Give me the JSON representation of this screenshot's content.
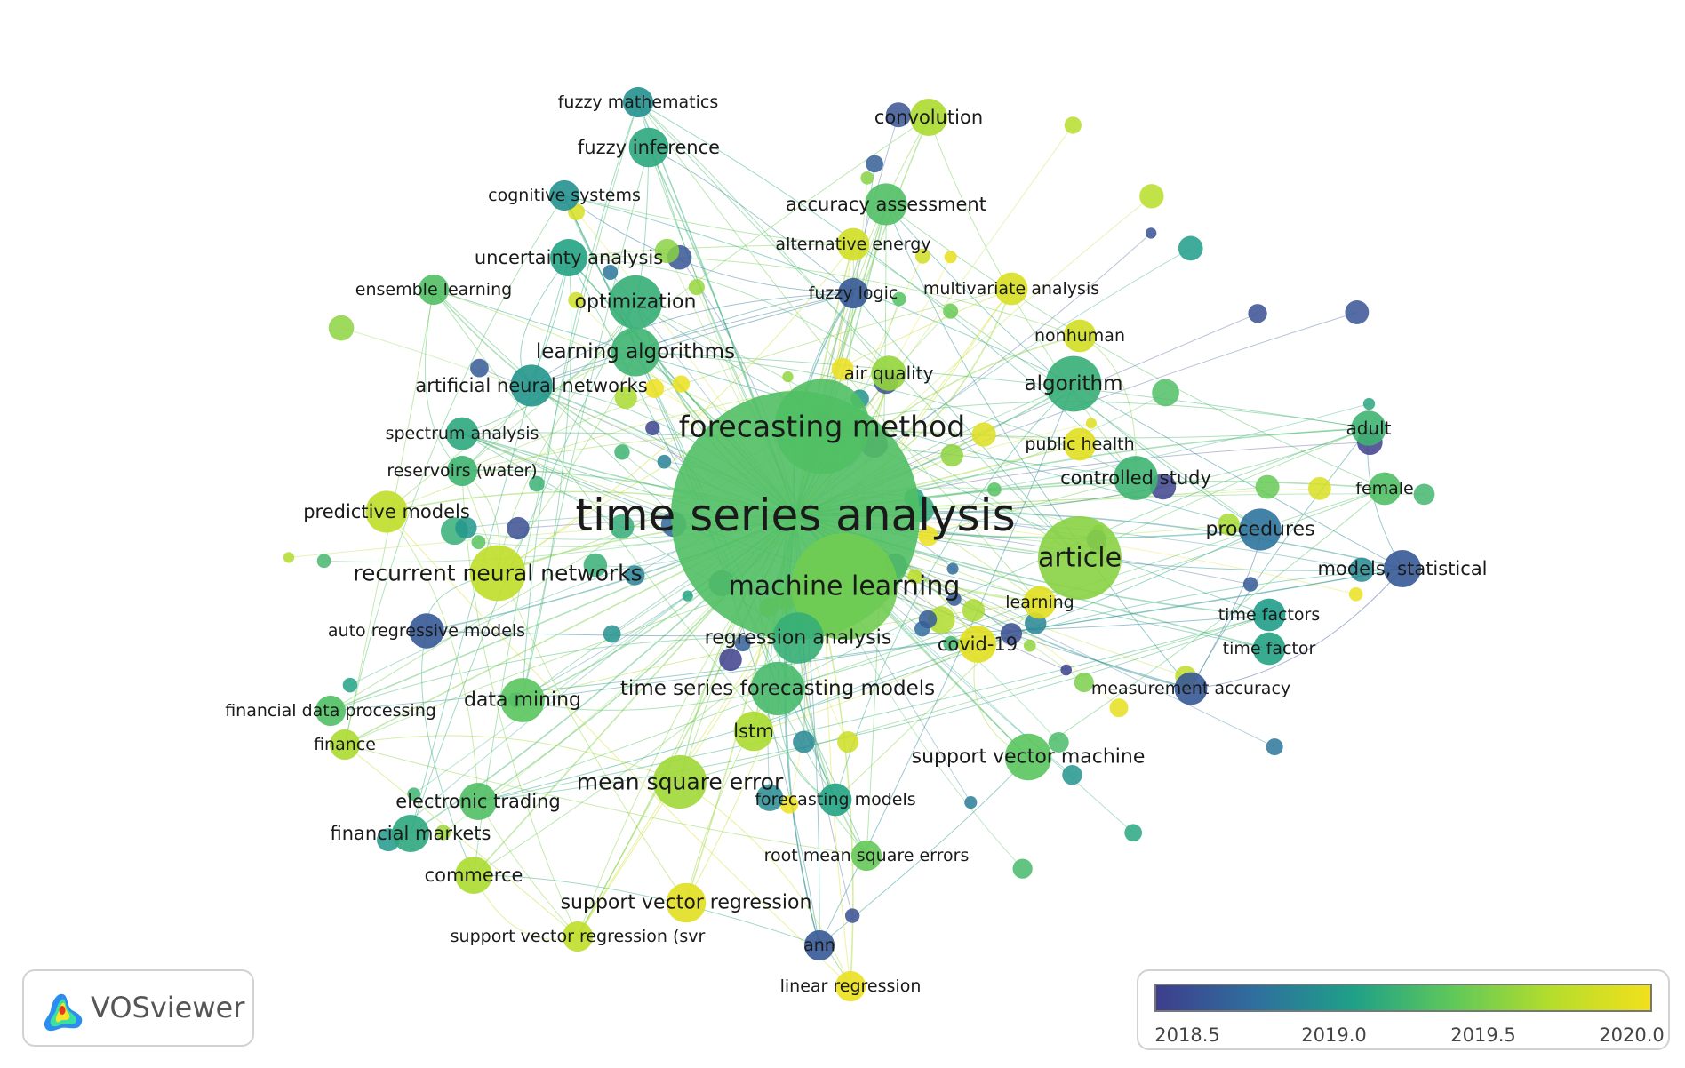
{
  "brand": {
    "name": "VOSviewer"
  },
  "legend": {
    "min": 2018.3,
    "max": 2020.1,
    "ticks": [
      "2018.5",
      "2019.0",
      "2019.5",
      "2020.0"
    ],
    "colors": [
      "#3e3e8c",
      "#2f6f9e",
      "#1fa088",
      "#5fc85a",
      "#b5dd2b",
      "#f2e01c"
    ]
  },
  "network": {
    "nodes": [
      {
        "label": "time series analysis",
        "year": 2019.3,
        "size": 1.0
      },
      {
        "label": "forecasting method",
        "year": 2019.3,
        "size": 0.35
      },
      {
        "label": "machine learning",
        "year": 2019.45,
        "size": 0.4
      },
      {
        "label": "article",
        "year": 2019.55,
        "size": 0.3
      },
      {
        "label": "algorithm",
        "year": 2019.15,
        "size": 0.18
      },
      {
        "label": "controlled study",
        "year": 2019.2,
        "size": 0.13
      },
      {
        "label": "procedures",
        "year": 2018.7,
        "size": 0.12
      },
      {
        "label": "models, statistical",
        "year": 2018.5,
        "size": 0.1
      },
      {
        "label": "adult",
        "year": 2019.2,
        "size": 0.09
      },
      {
        "label": "female",
        "year": 2019.3,
        "size": 0.08
      },
      {
        "label": "public health",
        "year": 2020.0,
        "size": 0.08
      },
      {
        "label": "nonhuman",
        "year": 2019.9,
        "size": 0.08
      },
      {
        "label": "multivariate analysis",
        "year": 2019.95,
        "size": 0.08
      },
      {
        "label": "fuzzy logic",
        "year": 2018.5,
        "size": 0.07
      },
      {
        "label": "air quality",
        "year": 2019.6,
        "size": 0.09
      },
      {
        "label": "alternative energy",
        "year": 2019.9,
        "size": 0.08
      },
      {
        "label": "accuracy assessment",
        "year": 2019.3,
        "size": 0.12
      },
      {
        "label": "convolution",
        "year": 2019.7,
        "size": 0.1
      },
      {
        "label": "fuzzy mathematics",
        "year": 2018.9,
        "size": 0.07
      },
      {
        "label": "fuzzy inference",
        "year": 2019.1,
        "size": 0.11
      },
      {
        "label": "cognitive systems",
        "year": 2018.9,
        "size": 0.07
      },
      {
        "label": "uncertainty analysis",
        "year": 2019.05,
        "size": 0.1
      },
      {
        "label": "ensemble learning",
        "year": 2019.3,
        "size": 0.07
      },
      {
        "label": "optimization",
        "year": 2019.15,
        "size": 0.17
      },
      {
        "label": "learning algorithms",
        "year": 2019.2,
        "size": 0.15
      },
      {
        "label": "artificial neural networks",
        "year": 2018.95,
        "size": 0.12
      },
      {
        "label": "spectrum analysis",
        "year": 2019.1,
        "size": 0.08
      },
      {
        "label": "reservoirs (water)",
        "year": 2019.2,
        "size": 0.07
      },
      {
        "label": "predictive models",
        "year": 2019.8,
        "size": 0.12
      },
      {
        "label": "recurrent neural networks",
        "year": 2019.8,
        "size": 0.18
      },
      {
        "label": "auto regressive models",
        "year": 2018.5,
        "size": 0.09
      },
      {
        "label": "financial data processing",
        "year": 2019.3,
        "size": 0.07
      },
      {
        "label": "finance",
        "year": 2019.7,
        "size": 0.07
      },
      {
        "label": "data mining",
        "year": 2019.35,
        "size": 0.13
      },
      {
        "label": "time series forecasting models",
        "year": 2019.25,
        "size": 0.17
      },
      {
        "label": "regression analysis",
        "year": 2019.15,
        "size": 0.16
      },
      {
        "label": "covid-19",
        "year": 2020.0,
        "size": 0.1
      },
      {
        "label": "learning",
        "year": 2020.0,
        "size": 0.08
      },
      {
        "label": "measurement accuracy",
        "year": 2018.5,
        "size": 0.08
      },
      {
        "label": "time factors",
        "year": 2019.0,
        "size": 0.08
      },
      {
        "label": "time factor",
        "year": 2019.05,
        "size": 0.08
      },
      {
        "label": "lstm",
        "year": 2019.7,
        "size": 0.11
      },
      {
        "label": "support vector machine",
        "year": 2019.35,
        "size": 0.14
      },
      {
        "label": "mean square error",
        "year": 2019.65,
        "size": 0.17
      },
      {
        "label": "electronic trading",
        "year": 2019.3,
        "size": 0.1
      },
      {
        "label": "financial markets",
        "year": 2019.1,
        "size": 0.1
      },
      {
        "label": "forecasting models",
        "year": 2019.05,
        "size": 0.08
      },
      {
        "label": "commerce",
        "year": 2019.7,
        "size": 0.1
      },
      {
        "label": "root mean square errors",
        "year": 2019.4,
        "size": 0.07
      },
      {
        "label": "support vector regression",
        "year": 2020.0,
        "size": 0.11
      },
      {
        "label": "support vector regression (svr",
        "year": 2019.8,
        "size": 0.07
      },
      {
        "label": "ann",
        "year": 2018.5,
        "size": 0.07
      },
      {
        "label": "linear regression",
        "year": 2020.05,
        "size": 0.07
      }
    ]
  }
}
